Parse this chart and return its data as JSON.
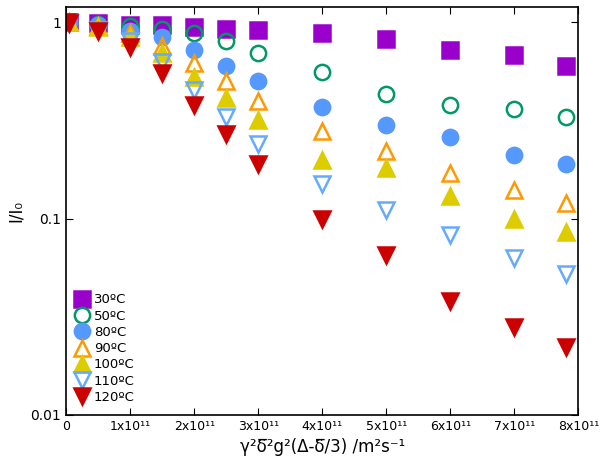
{
  "title": "",
  "xlabel": "γ²δ̅²g²(Δ-δ̅/3) /m²s⁻¹",
  "ylabel": "I/I₀",
  "xlim": [
    0,
    800000000000.0
  ],
  "ylim": [
    0.01,
    1.2
  ],
  "xticks": [
    0,
    100000000000.0,
    200000000000.0,
    300000000000.0,
    400000000000.0,
    500000000000.0,
    600000000000.0,
    700000000000.0,
    800000000000.0
  ],
  "xtick_labels": [
    "0",
    "1x10¹¹",
    "2x10¹¹",
    "3x10¹¹",
    "4x10¹¹",
    "5x10¹¹",
    "6x10¹¹",
    "7x10¹¹",
    "8x10¹¹"
  ],
  "yticks": [
    0.01,
    0.1,
    1.0
  ],
  "ytick_labels": [
    "0.01",
    "0.1",
    "1"
  ],
  "series": [
    {
      "label": "30ºC",
      "color": "#9900cc",
      "marker": "s",
      "fillstyle": "full",
      "x": [
        0,
        5000000000.0,
        50000000000.0,
        100000000000.0,
        150000000000.0,
        200000000000.0,
        250000000000.0,
        300000000000.0,
        400000000000.0,
        500000000000.0,
        600000000000.0,
        700000000000.0,
        780000000000.0
      ],
      "y": [
        1.0,
        1.0,
        0.99,
        0.97,
        0.97,
        0.95,
        0.93,
        0.92,
        0.88,
        0.82,
        0.72,
        0.68,
        0.6
      ]
    },
    {
      "label": "50ºC",
      "color": "#009966",
      "marker": "o",
      "fillstyle": "none",
      "x": [
        0,
        5000000000.0,
        50000000000.0,
        100000000000.0,
        150000000000.0,
        200000000000.0,
        250000000000.0,
        300000000000.0,
        400000000000.0,
        500000000000.0,
        600000000000.0,
        700000000000.0,
        780000000000.0
      ],
      "y": [
        1.0,
        1.0,
        0.98,
        0.96,
        0.93,
        0.88,
        0.8,
        0.7,
        0.56,
        0.43,
        0.38,
        0.36,
        0.33
      ]
    },
    {
      "label": "80ºC",
      "color": "#5599ff",
      "marker": "o",
      "fillstyle": "full",
      "x": [
        0,
        5000000000.0,
        50000000000.0,
        100000000000.0,
        150000000000.0,
        200000000000.0,
        250000000000.0,
        300000000000.0,
        400000000000.0,
        500000000000.0,
        600000000000.0,
        700000000000.0,
        780000000000.0
      ],
      "y": [
        1.0,
        1.0,
        0.97,
        0.91,
        0.84,
        0.72,
        0.6,
        0.5,
        0.37,
        0.3,
        0.26,
        0.21,
        0.19
      ]
    },
    {
      "label": "90ºC",
      "color": "#ff9900",
      "marker": "^",
      "fillstyle": "none",
      "x": [
        0,
        5000000000.0,
        50000000000.0,
        100000000000.0,
        150000000000.0,
        200000000000.0,
        250000000000.0,
        300000000000.0,
        400000000000.0,
        500000000000.0,
        600000000000.0,
        700000000000.0,
        780000000000.0
      ],
      "y": [
        1.0,
        1.0,
        0.96,
        0.88,
        0.76,
        0.62,
        0.5,
        0.4,
        0.28,
        0.22,
        0.17,
        0.14,
        0.12
      ]
    },
    {
      "label": "100ºC",
      "color": "#ddcc00",
      "marker": "^",
      "fillstyle": "full",
      "x": [
        0,
        5000000000.0,
        50000000000.0,
        100000000000.0,
        150000000000.0,
        200000000000.0,
        250000000000.0,
        300000000000.0,
        400000000000.0,
        500000000000.0,
        600000000000.0,
        700000000000.0,
        780000000000.0
      ],
      "y": [
        1.0,
        1.0,
        0.95,
        0.84,
        0.7,
        0.53,
        0.41,
        0.32,
        0.2,
        0.18,
        0.13,
        0.1,
        0.085
      ]
    },
    {
      "label": "110ºC",
      "color": "#66aaff",
      "marker": "v",
      "fillstyle": "none",
      "x": [
        0,
        5000000000.0,
        50000000000.0,
        100000000000.0,
        150000000000.0,
        200000000000.0,
        250000000000.0,
        300000000000.0,
        400000000000.0,
        500000000000.0,
        600000000000.0,
        700000000000.0,
        780000000000.0
      ],
      "y": [
        1.0,
        0.99,
        0.92,
        0.8,
        0.63,
        0.45,
        0.33,
        0.24,
        0.15,
        0.11,
        0.082,
        0.063,
        0.052
      ]
    },
    {
      "label": "120ºC",
      "color": "#cc0000",
      "marker": "v",
      "fillstyle": "full",
      "x": [
        0,
        5000000000.0,
        50000000000.0,
        100000000000.0,
        150000000000.0,
        200000000000.0,
        250000000000.0,
        300000000000.0,
        400000000000.0,
        500000000000.0,
        600000000000.0,
        700000000000.0,
        780000000000.0
      ],
      "y": [
        1.0,
        0.99,
        0.9,
        0.75,
        0.55,
        0.38,
        0.27,
        0.19,
        0.1,
        0.065,
        0.038,
        0.028,
        0.022
      ]
    }
  ],
  "legend_loc": "lower left",
  "background_color": "#ffffff",
  "markersize": 11
}
